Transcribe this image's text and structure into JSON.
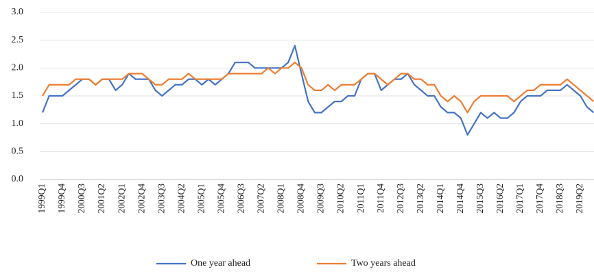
{
  "chart_data": {
    "type": "line",
    "categories": [
      "1999Q1",
      null,
      null,
      "1999Q4",
      null,
      null,
      "2000Q3",
      null,
      null,
      "2001Q2",
      null,
      null,
      "2002Q1",
      null,
      null,
      "2002Q4",
      null,
      null,
      "2003Q3",
      null,
      null,
      "2004Q2",
      null,
      null,
      "2005Q1",
      null,
      null,
      "2005Q4",
      null,
      null,
      "2006Q3",
      null,
      null,
      "2007Q2",
      null,
      null,
      "2008Q1",
      null,
      null,
      "2008Q4",
      null,
      null,
      "2009Q3",
      null,
      null,
      "2010Q2",
      null,
      null,
      "2011Q1",
      null,
      null,
      "2011Q4",
      null,
      null,
      "2012Q3",
      null,
      null,
      "2013Q2",
      null,
      null,
      "2014Q1",
      null,
      null,
      "2014Q4",
      null,
      null,
      "2015Q3",
      null,
      null,
      "2016Q2",
      null,
      null,
      "2017Q1",
      null,
      null,
      "2017Q4",
      null,
      null,
      "2018Q3",
      null,
      null,
      "2019Q2",
      null,
      null
    ],
    "series": [
      {
        "name": "One year ahead",
        "color": "#4472c4",
        "values": [
          1.2,
          1.5,
          1.5,
          1.5,
          1.6,
          1.7,
          1.8,
          1.8,
          1.7,
          1.8,
          1.8,
          1.6,
          1.7,
          1.9,
          1.8,
          1.8,
          1.8,
          1.6,
          1.5,
          1.6,
          1.7,
          1.7,
          1.8,
          1.8,
          1.7,
          1.8,
          1.7,
          1.8,
          1.9,
          2.1,
          2.1,
          2.1,
          2.0,
          2.0,
          2.0,
          2.0,
          2.0,
          2.1,
          2.4,
          1.9,
          1.4,
          1.2,
          1.2,
          1.3,
          1.4,
          1.4,
          1.5,
          1.5,
          1.8,
          1.9,
          1.9,
          1.6,
          1.7,
          1.8,
          1.8,
          1.9,
          1.7,
          1.6,
          1.5,
          1.5,
          1.3,
          1.2,
          1.2,
          1.1,
          0.8,
          1.0,
          1.2,
          1.1,
          1.2,
          1.1,
          1.1,
          1.2,
          1.4,
          1.5,
          1.5,
          1.5,
          1.6,
          1.6,
          1.6,
          1.7,
          1.6,
          1.5,
          1.3,
          1.2
        ]
      },
      {
        "name": "Two years ahead",
        "color": "#ed7d31",
        "values": [
          1.5,
          1.7,
          1.7,
          1.7,
          1.7,
          1.8,
          1.8,
          1.8,
          1.7,
          1.8,
          1.8,
          1.8,
          1.8,
          1.9,
          1.9,
          1.9,
          1.8,
          1.7,
          1.7,
          1.8,
          1.8,
          1.8,
          1.9,
          1.8,
          1.8,
          1.8,
          1.8,
          1.8,
          1.9,
          1.9,
          1.9,
          1.9,
          1.9,
          1.9,
          2.0,
          1.9,
          2.0,
          2.0,
          2.1,
          2.0,
          1.7,
          1.6,
          1.6,
          1.7,
          1.6,
          1.7,
          1.7,
          1.7,
          1.8,
          1.9,
          1.9,
          1.8,
          1.7,
          1.8,
          1.9,
          1.9,
          1.8,
          1.8,
          1.7,
          1.7,
          1.5,
          1.4,
          1.5,
          1.4,
          1.2,
          1.4,
          1.5,
          1.5,
          1.5,
          1.5,
          1.5,
          1.4,
          1.5,
          1.6,
          1.6,
          1.7,
          1.7,
          1.7,
          1.7,
          1.8,
          1.7,
          1.6,
          1.5,
          1.4
        ]
      }
    ],
    "ylim": [
      0,
      3
    ],
    "yticks": [
      {
        "value": 0,
        "label": "0.0"
      },
      0.5,
      {
        "value": 1,
        "label": "1.0"
      },
      1.5,
      {
        "value": 2,
        "label": "2.0"
      },
      2.5,
      {
        "value": 3,
        "label": "3.0"
      }
    ],
    "grid": true,
    "legend": "bottom"
  }
}
